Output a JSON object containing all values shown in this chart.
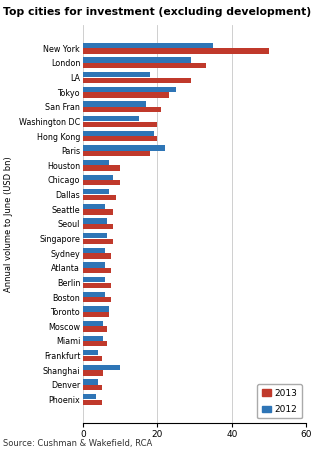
{
  "title": "Top cities for investment (excluding development)",
  "source": "Source: Cushman & Wakefield, RCA",
  "ylabel": "Annual volume to June (USD bn)",
  "xlim": [
    0,
    60
  ],
  "xticks": [
    0,
    20,
    40,
    60
  ],
  "cities": [
    "New York",
    "London",
    "LA",
    "Tokyo",
    "San Fran",
    "Washington DC",
    "Hong Kong",
    "Paris",
    "Houston",
    "Chicago",
    "Dallas",
    "Seattle",
    "Seoul",
    "Singapore",
    "Sydney",
    "Atlanta",
    "Berlin",
    "Boston",
    "Toronto",
    "Moscow",
    "Miami",
    "Frankfurt",
    "Shanghai",
    "Denver",
    "Phoenix"
  ],
  "values_2013": [
    50,
    33,
    29,
    23,
    21,
    20,
    20,
    18,
    10,
    10,
    9,
    8,
    8,
    8,
    7.5,
    7.5,
    7.5,
    7.5,
    7,
    6.5,
    6.5,
    5,
    5.5,
    5,
    5
  ],
  "values_2012": [
    35,
    29,
    18,
    25,
    17,
    15,
    19,
    22,
    7,
    8,
    7,
    6,
    6.5,
    6.5,
    6,
    6,
    6,
    6,
    7,
    5.5,
    5.5,
    4,
    10,
    4,
    3.5
  ],
  "color_2013": "#c0392b",
  "color_2012": "#2e75b6",
  "legend_2013": "2013",
  "legend_2012": "2012",
  "background_color": "#ffffff",
  "grid_color": "#c8c8c8"
}
